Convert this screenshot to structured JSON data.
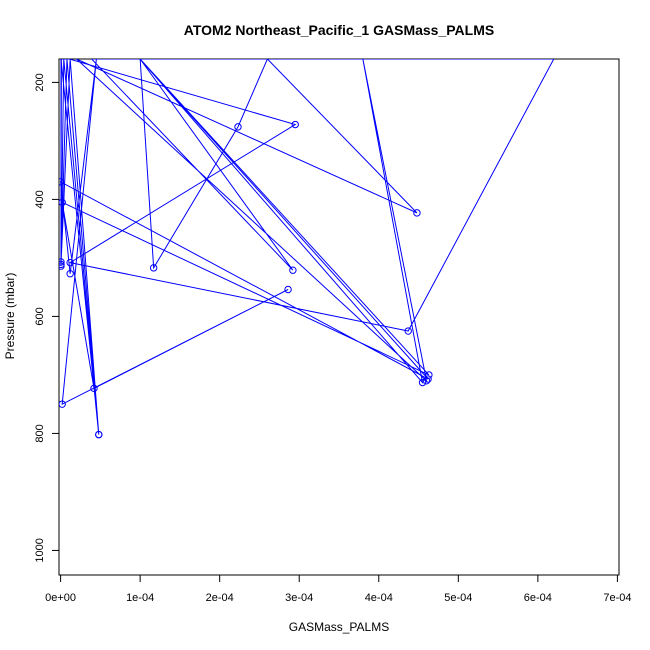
{
  "chart_data": {
    "type": "line",
    "title": "ATOM2 Northeast_Pacific_1 GASMass_PALMS",
    "xlabel": "GASMass_PALMS",
    "ylabel": "Pressure (mbar)",
    "xlim": [
      -2e-06,
      0.000702
    ],
    "ylim": [
      1042,
      160
    ],
    "y_reversed": true,
    "x_ticks": [
      {
        "value": 0,
        "label": "0e+00"
      },
      {
        "value": 0.0001,
        "label": "1e-04"
      },
      {
        "value": 0.0002,
        "label": "2e-04"
      },
      {
        "value": 0.0003,
        "label": "3e-04"
      },
      {
        "value": 0.0004,
        "label": "4e-04"
      },
      {
        "value": 0.0005,
        "label": "5e-04"
      },
      {
        "value": 0.0006,
        "label": "6e-04"
      },
      {
        "value": 0.0007,
        "label": "7e-04"
      }
    ],
    "y_ticks": [
      {
        "value": 200,
        "label": "200"
      },
      {
        "value": 400,
        "label": "400"
      },
      {
        "value": 600,
        "label": "600"
      },
      {
        "value": 800,
        "label": "800"
      },
      {
        "value": 1000,
        "label": "1000"
      }
    ],
    "series": [
      {
        "color": "#0000ff",
        "marker": "open-circle",
        "points": [
          {
            "x": 5e-07,
            "y": 160
          },
          {
            "x": 5e-07,
            "y": 511
          },
          {
            "x": 1.2e-05,
            "y": 160
          },
          {
            "x": 4.8e-05,
            "y": 802
          },
          {
            "x": 5e-07,
            "y": 160
          },
          {
            "x": 5e-07,
            "y": 507
          },
          {
            "x": 8e-06,
            "y": 160
          },
          {
            "x": 4.8e-05,
            "y": 802
          },
          {
            "x": 4e-06,
            "y": 160
          },
          {
            "x": 5e-07,
            "y": 514
          },
          {
            "x": 1e-06,
            "y": 160
          },
          {
            "x": 5e-07,
            "y": 160
          },
          {
            "x": 1.3e-05,
            "y": 160
          },
          {
            "x": 1.1e-05,
            "y": 160
          },
          {
            "x": 0.000295,
            "y": 272
          },
          {
            "x": 1.2e-05,
            "y": 508
          },
          {
            "x": 0.000437,
            "y": 625
          },
          {
            "x": 0.00062,
            "y": 160
          },
          {
            "x": 3.9e-05,
            "y": 160
          },
          {
            "x": 0.000292,
            "y": 521
          },
          {
            "x": 0.0001,
            "y": 160
          },
          {
            "x": 0.000463,
            "y": 700
          },
          {
            "x": 2e-06,
            "y": 405
          },
          {
            "x": 4.2e-05,
            "y": 723
          },
          {
            "x": 0.000286,
            "y": 554
          },
          {
            "x": 2e-06,
            "y": 750
          },
          {
            "x": 4.5e-05,
            "y": 160
          },
          {
            "x": 1.2e-05,
            "y": 527
          },
          {
            "x": 0.0,
            "y": 370
          },
          {
            "x": 0.000462,
            "y": 707
          },
          {
            "x": 0.0001,
            "y": 160
          },
          {
            "x": 0.000455,
            "y": 713
          },
          {
            "x": 0.00038,
            "y": 160
          },
          {
            "x": 0.00046,
            "y": 710
          },
          {
            "x": 2e-05,
            "y": 160
          },
          {
            "x": 0.000448,
            "y": 423
          },
          {
            "x": 0.00026,
            "y": 160
          },
          {
            "x": 0.000223,
            "y": 276
          },
          {
            "x": 0.000117,
            "y": 517
          },
          {
            "x": 0.0001,
            "y": 160
          }
        ]
      }
    ]
  }
}
